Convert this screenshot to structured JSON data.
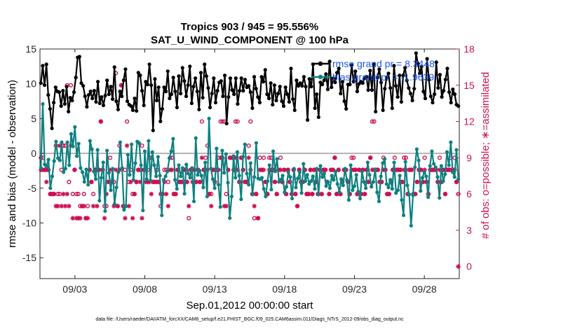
{
  "chart_data": {
    "type": "line",
    "title": "Tropics 903 / 945 = 95.556%",
    "subtitle": "SAT_U_WIND_COMPONENT @ 100 hPa",
    "xlabel": "Sep.01,2012 00:00:00 start",
    "ylabel": "rmse and bias (model - observation)",
    "ylabel_right": "# of obs: o=possible; ∗=assimilated",
    "ylim": [
      -18,
      15
    ],
    "ylim_right": [
      -1,
      18
    ],
    "xlim": [
      0.5,
      30.5
    ],
    "x_tick_days": [
      3,
      8,
      13,
      18,
      23,
      28
    ],
    "x_tick_labels": [
      "09/03",
      "09/08",
      "09/13",
      "09/18",
      "09/23",
      "09/28"
    ],
    "y_ticks": [
      15,
      10,
      5,
      0,
      -5,
      -10,
      -15
    ],
    "y_ticks_right": [
      18,
      15,
      12,
      9,
      6,
      3,
      0
    ],
    "zero_line": 0,
    "footer": "data file: /Users/raeder/DAI/ATM_forcXX/CAM6_setup/f.e21.FHIST_BGC.f09_025.CAM6assim.011/Diags_NTrS_2012-09/obs_diag_output.nc",
    "legend": {
      "rmse_label": "rmse grand pr = 8.3448",
      "bias_label": "bias grand pr = -1.9639",
      "position": "top-right"
    },
    "colors": {
      "rmse": "#000000",
      "bias": "#0f8080",
      "counts": "#cc1155",
      "zero_line": "#b3b3b3",
      "legend_text": "#1a55ee"
    },
    "series": [
      {
        "name": "rmse",
        "values": [
          10.1,
          12.6,
          9.8,
          12.8,
          8.4,
          6.4,
          3.6,
          7.3,
          9.5,
          8.9,
          8.8,
          6.8,
          9.0,
          7.1,
          9.6,
          6.0,
          8.0,
          7.6,
          8.8,
          10.9,
          13.8,
          13.9,
          10.1,
          9.7,
          8.2,
          6.7,
          8.4,
          8.9,
          7.9,
          9.0,
          7.4,
          10.3,
          7.2,
          8.1,
          6.9,
          8.3,
          10.5,
          8.5,
          9.6,
          7.8,
          12.4,
          7.5,
          6.3,
          8.9,
          8.2,
          10.5,
          12.1,
          7.5,
          7.0,
          6.8,
          6.2,
          7.9,
          6.1,
          11.6,
          11.2,
          9.0,
          6.9,
          10.3,
          9.9,
          12.8,
          9.8,
          3.3,
          10.7,
          7.6,
          9.5,
          4.6,
          6.4,
          9.5,
          8.9,
          11.8,
          7.9,
          8.5,
          10.9,
          8.9,
          6.6,
          11.1,
          8.6,
          12.3,
          10.4,
          8.2,
          9.8,
          12.5,
          7.2,
          9.6,
          10.8,
          8.9,
          6.3,
          11.6,
          8.0,
          12.8,
          11.1,
          9.4,
          6.6,
          8.6,
          10.8,
          7.3,
          9.0,
          10.2,
          10.4,
          8.2,
          11.2,
          4.3,
          8.1,
          10.8,
          9.1,
          8.5,
          10.8,
          7.1,
          9.0,
          10.8,
          9.0,
          10.6,
          9.5,
          9.7,
          8.8,
          6.5,
          11.0,
          9.3,
          8.1,
          7.3,
          11.0,
          10.3,
          12.0,
          8.5,
          7.9,
          10.1,
          7.0,
          9.8,
          7.6,
          8.6,
          9.6,
          7.5,
          6.8,
          9.5,
          8.5,
          7.4,
          12.2,
          7.8,
          6.2,
          10.5,
          9.7,
          10.1,
          9.7,
          11.0,
          9.6,
          4.8,
          10.7,
          9.6,
          12.8,
          6.5,
          8.5,
          5.2,
          10.2,
          9.9,
          10.5,
          11.4,
          9.2,
          13.2,
          9.5,
          10.8,
          10.2,
          11.6,
          12.2,
          8.6,
          10.3,
          7.5,
          6.4,
          9.9,
          9.9,
          12.7,
          10.3,
          11.8,
          8.9,
          10.0,
          10.3,
          10.1,
          10.8,
          11.0,
          9.1,
          11.9,
          9.1,
          12.8,
          6.0,
          10.9,
          12.1,
          10.2,
          6.2,
          9.3,
          10.9,
          11.5,
          9.4,
          6.5,
          12.6,
          9.7,
          8.1,
          11.2,
          7.4,
          11.2,
          12.3,
          10.5,
          9.4,
          8.6,
          7.6,
          9.3,
          14.4,
          12.9,
          11.5,
          12.5,
          8.9,
          7.9,
          13.6,
          10.6,
          8.2,
          7.3,
          8.5,
          13.1,
          9.4,
          11.3,
          8.1,
          9.0,
          10.6,
          12.2,
          8.8,
          7.3,
          9.2,
          8.5,
          7.0,
          6.8
        ],
        "label": "rmse grand pr = 8.3448"
      },
      {
        "name": "bias",
        "values": [
          -2.1,
          7.1,
          -1.6,
          -1.9,
          -0.9,
          -5.0,
          -3.3,
          -1.1,
          1.7,
          -0.7,
          -1.0,
          1.6,
          -2.7,
          -2.2,
          1.6,
          -1.7,
          2.8,
          1.0,
          3.8,
          -0.4,
          1.4,
          -2.1,
          -2.7,
          -4.1,
          -2.3,
          -4.5,
          1.8,
          0.6,
          -2.6,
          -3.7,
          0.5,
          -6.8,
          -3.5,
          -1.3,
          -8.3,
          0.4,
          -2.8,
          -5.3,
          -2.2,
          -7.3,
          -4.9,
          -2.7,
          1.6,
          -2.1,
          -8.1,
          -7.6,
          -0.2,
          -3.1,
          1.3,
          -3.8,
          -1.4,
          1.7,
          1.5,
          -1.7,
          -8.2,
          0.3,
          -3.7,
          1.8,
          -3.9,
          0.2,
          -1.7,
          -3.3,
          -0.5,
          -3.2,
          -8.9,
          -3.8,
          -3.3,
          -2.6,
          -0.7,
          0.3,
          2.1,
          -3.8,
          -5.1,
          -1.7,
          -3.3,
          -2.1,
          -5.8,
          -1.6,
          -2.9,
          -3.5,
          -2.1,
          -6.9,
          2.2,
          -3.1,
          -2.5,
          -3.2,
          -4.9,
          -1.3,
          -6.2,
          5.0,
          -2.2,
          -3.7,
          -5.0,
          0.7,
          -4.5,
          -7.7,
          0.4,
          -2.8,
          -0.1,
          -4.2,
          -9.3,
          -6.2,
          -0.4,
          -3.5,
          0.2,
          -3.2,
          -6.6,
          -0.5,
          1.3,
          -2.9,
          -4.5,
          -1.4,
          -5.9,
          -3.4,
          1.5,
          -3.6,
          -3.7,
          -3.5,
          -5.1,
          -6.2,
          -4.0,
          -1.7,
          -5.2,
          0.3,
          -2.6,
          -0.8,
          -4.1,
          -3.8,
          -3.2,
          -5.6,
          -4.8,
          -2.7,
          -3.4,
          -6.5,
          -2.2,
          -4.9,
          -3.6,
          -2.7,
          -5.7,
          -1.5,
          -4.0,
          -3.1,
          -4.4,
          -4.0,
          -3.3,
          -5.1,
          -2.2,
          -5.9,
          -1.8,
          -3.4,
          -2.9,
          -4.7,
          -4.1,
          -5.0,
          -3.2,
          -3.8,
          -2.6,
          -4.4,
          -5.6,
          -3.7,
          -4.6,
          -2.2,
          -3.8,
          -6.7,
          -1.7,
          -5.3,
          -4.7,
          -3.1,
          -5.5,
          -6.5,
          -2.6,
          -4.1,
          -5.0,
          -1.3,
          -3.1,
          -4.8,
          -4.1,
          -2.3,
          -5.6,
          -6.9,
          -3.3,
          -1.4,
          -0.8,
          -4.4,
          -4.9,
          -3.8,
          -5.1,
          -1.3,
          -5.7,
          -5.3,
          -3.2,
          -6.7,
          -8.9,
          -1.2,
          -4.6,
          -5.9,
          -10.4,
          -6.0,
          -2.0,
          0.6,
          -1.0,
          -5.4,
          -3.5,
          -2.7,
          -3.3,
          -6.3,
          -1.8,
          0.3,
          -1.5,
          -2.0,
          -3.4,
          -6.4,
          -1.8,
          -4.0,
          -3.0,
          0.2,
          -1.7,
          1.6,
          -2.7,
          -3.4,
          0.5,
          -3.7
        ],
        "label": "bias grand pr = -1.9639"
      },
      {
        "name": "possible",
        "marker": "o",
        "values": [
          9,
          9,
          8,
          8,
          8,
          6,
          6,
          6,
          10,
          6,
          6,
          8,
          10,
          10,
          15,
          7,
          15,
          6,
          8,
          6,
          6,
          5,
          5,
          6,
          4,
          5,
          8,
          7,
          6,
          8,
          8,
          8,
          12,
          8,
          5,
          5,
          7,
          9,
          7,
          7,
          16,
          5,
          10,
          15,
          5,
          8,
          12,
          7,
          8,
          6,
          6,
          7,
          8,
          8,
          10,
          8,
          8,
          8,
          9,
          9,
          7,
          7,
          8,
          7,
          5,
          6,
          8,
          8,
          7,
          9,
          9,
          6,
          6,
          8,
          7,
          7,
          8,
          8,
          7,
          4,
          8,
          8,
          8,
          7,
          8,
          7,
          12,
          8,
          9,
          10,
          6,
          6,
          8,
          8,
          8,
          9,
          12,
          12,
          12,
          6,
          8,
          9,
          9,
          8,
          12,
          12,
          7,
          9,
          8,
          7,
          7,
          10,
          12,
          6,
          4,
          6,
          4,
          9,
          8,
          9,
          7,
          6,
          9,
          9,
          8,
          7,
          6,
          8,
          9,
          7,
          8,
          6,
          8,
          7,
          6,
          8,
          6,
          5,
          8,
          7,
          7,
          8,
          6,
          6,
          8,
          6,
          8,
          7,
          6,
          8,
          6,
          8,
          8,
          7,
          6,
          8,
          8,
          9,
          6,
          8,
          6,
          7,
          8,
          8,
          7,
          6,
          9,
          9,
          8,
          6,
          8,
          6,
          8,
          6,
          8,
          7,
          9,
          12,
          12,
          8,
          8,
          7,
          7,
          9,
          8,
          6,
          6,
          7,
          8,
          9,
          8,
          8,
          8,
          7,
          9,
          9,
          6,
          8,
          8,
          6,
          6,
          7,
          8,
          8,
          7,
          9,
          7,
          6,
          8,
          8,
          8,
          8,
          7,
          9,
          7,
          8,
          6,
          8,
          8,
          9,
          8,
          9,
          7,
          6
        ]
      },
      {
        "name": "assimilated",
        "marker": "*",
        "values": [
          8,
          8,
          8,
          7,
          8,
          6,
          6,
          6,
          5,
          5,
          10,
          5,
          6,
          5,
          6,
          5,
          10,
          4,
          8,
          4,
          4,
          4,
          5,
          5,
          4,
          4,
          8,
          7,
          5,
          8,
          5,
          8,
          12,
          8,
          4,
          6,
          7,
          8,
          7,
          5,
          8,
          5,
          8,
          15,
          5,
          4,
          10,
          5,
          7,
          4,
          6,
          7,
          8,
          7,
          4,
          8,
          7,
          7,
          7,
          6,
          7,
          7,
          7,
          7,
          6,
          6,
          7,
          6,
          5,
          8,
          8,
          6,
          6,
          8,
          7,
          7,
          7,
          8,
          7,
          5,
          8,
          7,
          8,
          7,
          8,
          7,
          9,
          8,
          8,
          8,
          6,
          5,
          8,
          7,
          8,
          8,
          9,
          9,
          5,
          5,
          8,
          9,
          9,
          8,
          9,
          8,
          7,
          9,
          8,
          7,
          7,
          9,
          8,
          6,
          5,
          6,
          4,
          8,
          8,
          8,
          7,
          6,
          8,
          8,
          8,
          7,
          6,
          8,
          8,
          7,
          8,
          6,
          8,
          7,
          6,
          8,
          6,
          5,
          8,
          7,
          7,
          8,
          6,
          6,
          8,
          6,
          8,
          7,
          6,
          8,
          6,
          8,
          8,
          7,
          6,
          8,
          8,
          9,
          6,
          8,
          6,
          7,
          8,
          8,
          7,
          6,
          8,
          8,
          8,
          6,
          8,
          6,
          8,
          6,
          8,
          7,
          9,
          8,
          8,
          8,
          8,
          7,
          7,
          8,
          8,
          6,
          6,
          7,
          8,
          8,
          8,
          8,
          8,
          7,
          8,
          8,
          6,
          8,
          8,
          6,
          6,
          7,
          8,
          8,
          7,
          8,
          7,
          6,
          8,
          8,
          8,
          8,
          7,
          8,
          7,
          8,
          6,
          8,
          8,
          8,
          8,
          8,
          7,
          0
        ]
      }
    ]
  }
}
